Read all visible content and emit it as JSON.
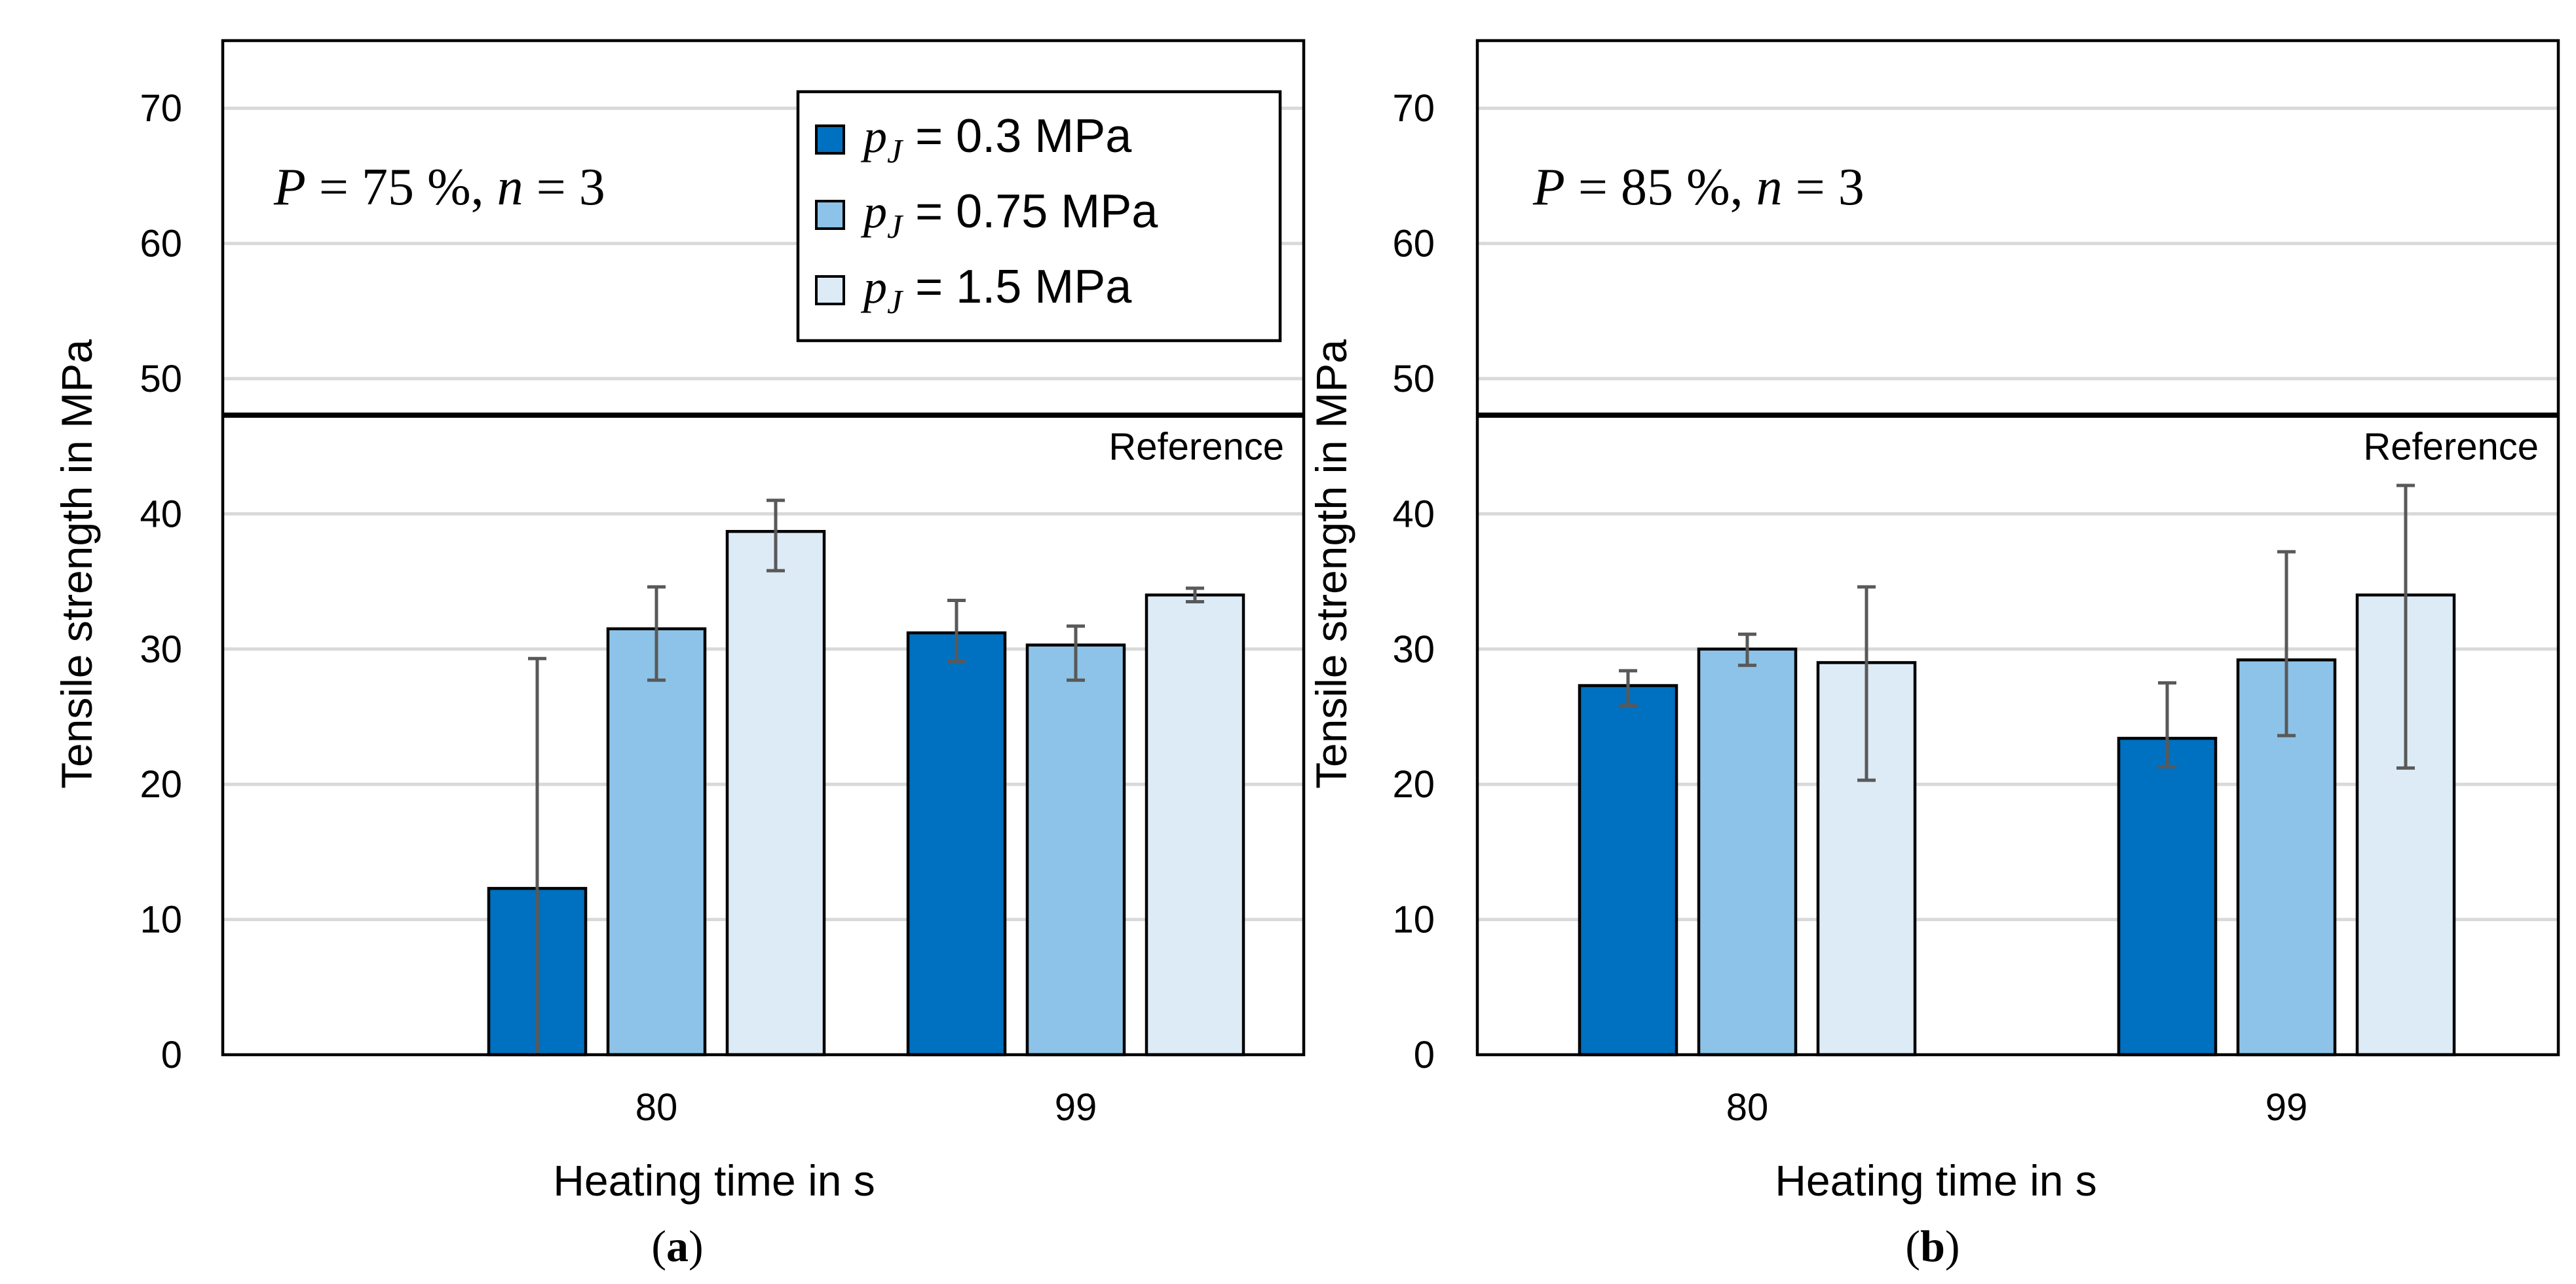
{
  "chart_data": [
    {
      "type": "bar",
      "panel_label": "a",
      "annotation": {
        "P_symbol": "P",
        "P_value": "75 %",
        "n_symbol": "n",
        "n_value": "3"
      },
      "xlabel": "Heating time in s",
      "ylabel": "Tensile strength in MPa",
      "ylim": [
        0,
        75
      ],
      "yticks": [
        0,
        10,
        20,
        30,
        40,
        50,
        60,
        70
      ],
      "grid": true,
      "categories": [
        "80",
        "99"
      ],
      "reference": {
        "label": "Reference",
        "value": 47.3
      },
      "legend": {
        "position": "top-right",
        "visible": true
      },
      "series": [
        {
          "name": "p_J = 0.3 MPa",
          "symbol": "p",
          "subscript": "J",
          "value_label": "0.3 MPa",
          "color": "#0070C0",
          "values": [
            12.3,
            31.2
          ],
          "err_low": [
            12.3,
            2.1
          ],
          "err_high": [
            17.0,
            2.4
          ]
        },
        {
          "name": "p_J = 0.75 MPa",
          "symbol": "p",
          "subscript": "J",
          "value_label": "0.75 MPa",
          "color": "#8DC3E8",
          "values": [
            31.5,
            30.3
          ],
          "err_low": [
            3.8,
            2.6
          ],
          "err_high": [
            3.1,
            1.4
          ]
        },
        {
          "name": "p_J = 1.5 MPa",
          "symbol": "p",
          "subscript": "J",
          "value_label": "1.5 MPa",
          "color": "#DDEBF7",
          "values": [
            38.7,
            34.0
          ],
          "err_low": [
            2.9,
            0.5
          ],
          "err_high": [
            2.3,
            0.5
          ]
        }
      ]
    },
    {
      "type": "bar",
      "panel_label": "b",
      "annotation": {
        "P_symbol": "P",
        "P_value": "85 %",
        "n_symbol": "n",
        "n_value": "3"
      },
      "xlabel": "Heating time in s",
      "ylabel": "Tensile strength in MPa",
      "ylim": [
        0,
        75
      ],
      "yticks": [
        0,
        10,
        20,
        30,
        40,
        50,
        60,
        70
      ],
      "grid": true,
      "categories": [
        "80",
        "99"
      ],
      "reference": {
        "label": "Reference",
        "value": 47.3
      },
      "legend": {
        "visible": false
      },
      "series": [
        {
          "name": "p_J = 0.3 MPa",
          "color": "#0070C0",
          "values": [
            27.3,
            23.4
          ],
          "err_low": [
            1.5,
            2.1
          ],
          "err_high": [
            1.1,
            4.1
          ]
        },
        {
          "name": "p_J = 0.75 MPa",
          "color": "#8DC3E8",
          "values": [
            30.0,
            29.2
          ],
          "err_low": [
            1.2,
            5.6
          ],
          "err_high": [
            1.1,
            8.0
          ]
        },
        {
          "name": "p_J = 1.5 MPa",
          "color": "#DDEBF7",
          "values": [
            29.0,
            34.0
          ],
          "err_low": [
            8.7,
            12.8
          ],
          "err_high": [
            5.6,
            8.1
          ]
        }
      ]
    }
  ]
}
